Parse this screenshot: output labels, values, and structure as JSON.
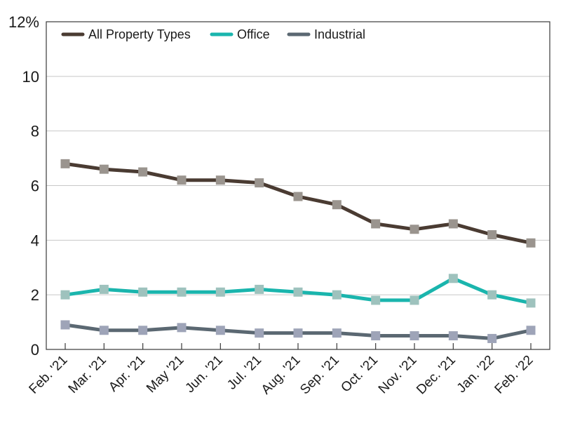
{
  "chart_data": {
    "type": "line",
    "categories": [
      "Feb. '21",
      "Mar. '21",
      "Apr. '21",
      "May '21",
      "Jun. '21",
      "Jul. '21",
      "Aug. '21",
      "Sep. '21",
      "Oct. '21",
      "Nov. '21",
      "Dec. '21",
      "Jan. '22",
      "Feb. '22"
    ],
    "y_ticks": [
      "0",
      "2",
      "4",
      "6",
      "8",
      "10",
      "12%"
    ],
    "ylim": [
      0,
      12
    ],
    "grid": true,
    "legend_placement": "top-left",
    "marker": "square",
    "series": [
      {
        "name": "All Property Types",
        "color": "#4a3b32",
        "marker_color": "#9a948e",
        "values": [
          6.8,
          6.6,
          6.5,
          6.2,
          6.2,
          6.1,
          5.6,
          5.3,
          4.6,
          4.4,
          4.6,
          4.2,
          3.9
        ]
      },
      {
        "name": "Office",
        "color": "#1ab5ad",
        "marker_color": "#9ec2bd",
        "values": [
          2.0,
          2.2,
          2.1,
          2.1,
          2.1,
          2.2,
          2.1,
          2.0,
          1.8,
          1.8,
          2.6,
          2.0,
          1.7
        ]
      },
      {
        "name": "Industrial",
        "color": "#5b6872",
        "marker_color": "#9ea4b8",
        "values": [
          0.9,
          0.7,
          0.7,
          0.8,
          0.7,
          0.6,
          0.6,
          0.6,
          0.5,
          0.5,
          0.5,
          0.4,
          0.7
        ]
      }
    ]
  }
}
